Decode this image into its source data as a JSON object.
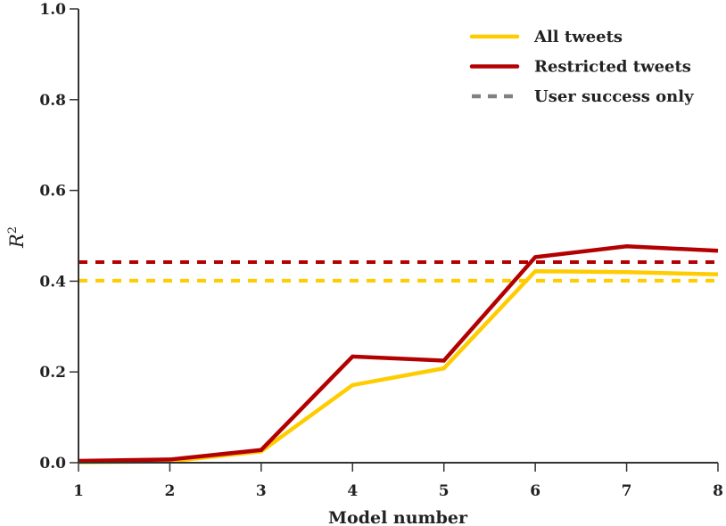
{
  "chart_data": {
    "type": "line",
    "title": "",
    "xlabel": "Model number",
    "ylabel": "R²",
    "ylabel_base": "R",
    "ylabel_sup": "2",
    "x": [
      1,
      2,
      3,
      4,
      5,
      6,
      7,
      8
    ],
    "xlim": [
      1,
      8
    ],
    "ylim": [
      0.0,
      1.0
    ],
    "xticks": [
      "1",
      "2",
      "3",
      "4",
      "5",
      "6",
      "7",
      "8"
    ],
    "yticks": [
      "0.0",
      "0.2",
      "0.4",
      "0.6",
      "0.8",
      "1.0"
    ],
    "ytick_values": [
      0.0,
      0.2,
      0.4,
      0.6,
      0.8,
      1.0
    ],
    "grid": false,
    "legend_position": "upper right",
    "series": [
      {
        "name": "All tweets",
        "color": "#FFCC00",
        "style": "solid",
        "values": [
          0.001,
          0.003,
          0.025,
          0.171,
          0.208,
          0.422,
          0.42,
          0.415
        ]
      },
      {
        "name": "Restricted tweets",
        "color": "#B30000",
        "style": "solid",
        "values": [
          0.004,
          0.007,
          0.028,
          0.234,
          0.225,
          0.453,
          0.477,
          0.467
        ]
      }
    ],
    "reference_lines": [
      {
        "name": "User success only (All tweets)",
        "color": "#FFCC00",
        "style": "dashed",
        "value": 0.401
      },
      {
        "name": "User success only (Restricted tweets)",
        "color": "#B30000",
        "style": "dashed",
        "value": 0.442
      }
    ],
    "legend": [
      {
        "label": "All tweets",
        "color": "#FFCC00",
        "style": "solid"
      },
      {
        "label": "Restricted tweets",
        "color": "#B30000",
        "style": "solid"
      },
      {
        "label": "User success only",
        "color": "#808080",
        "style": "dashed"
      }
    ]
  }
}
